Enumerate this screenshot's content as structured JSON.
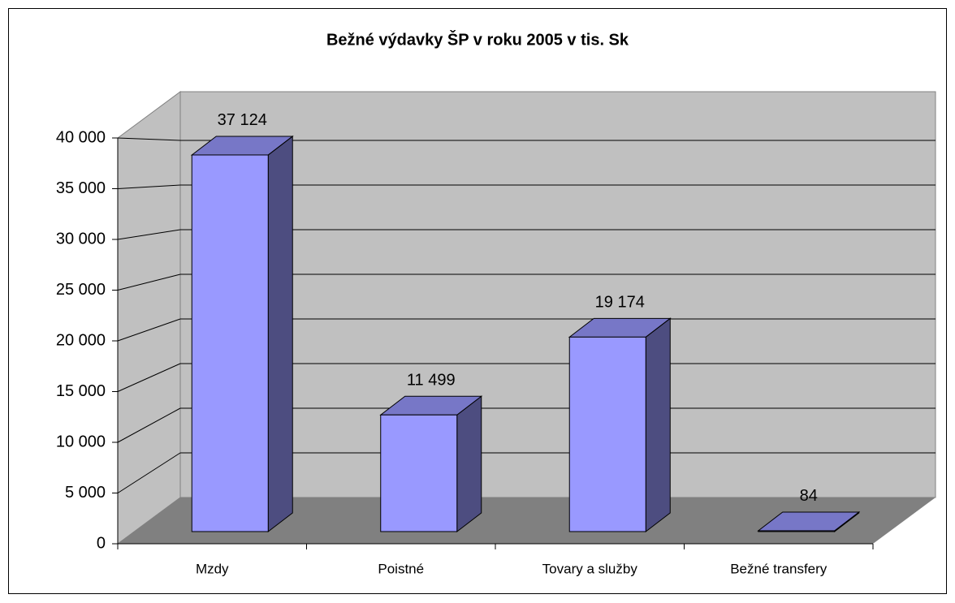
{
  "chart_data": {
    "type": "bar3d",
    "title": "Bežné výdavky ŠP v roku 2005 v tis. Sk",
    "categories": [
      "Mzdy",
      "Poistné",
      "Tovary a služby",
      "Bežné transfery"
    ],
    "values": [
      37124,
      11499,
      19174,
      84
    ],
    "value_labels": [
      "37 124",
      "11 499",
      "19 174",
      "84"
    ],
    "color": "#9999ff",
    "ylim": [
      0,
      40000
    ],
    "yticks": [
      0,
      {
        "value": 5000,
        "label": "5 000"
      },
      {
        "value": 10000,
        "label": "10 000"
      },
      {
        "value": 15000,
        "label": "15 000"
      },
      {
        "value": 20000,
        "label": "20 000"
      },
      {
        "value": 25000,
        "label": "25 000"
      },
      {
        "value": 30000,
        "label": "30 000"
      },
      {
        "value": 35000,
        "label": "35 000"
      },
      {
        "value": 40000,
        "label": "40 000"
      }
    ],
    "grid": true
  }
}
